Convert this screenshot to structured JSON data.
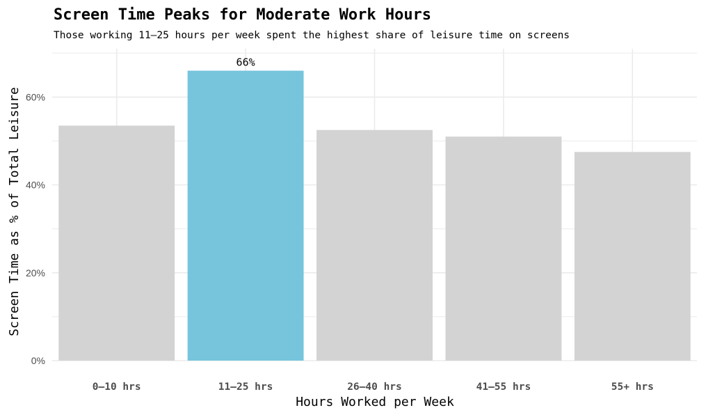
{
  "chart_data": {
    "type": "bar",
    "title": "Screen Time Peaks for Moderate Work Hours",
    "subtitle": "Those working 11–25 hours per week spent the highest share of leisure time on screens",
    "xlabel": "Hours Worked per Week",
    "ylabel": "Screen Time as % of Total Leisure",
    "categories": [
      "0–10 hrs",
      "11–25 hrs",
      "26–40 hrs",
      "41–55 hrs",
      "55+ hrs"
    ],
    "values": [
      53.5,
      66,
      52.5,
      51,
      47.5
    ],
    "ylim": [
      0,
      71
    ],
    "yticks": [
      0,
      20,
      40,
      60
    ],
    "ytick_labels": [
      "0%",
      "20%",
      "40%",
      "60%"
    ],
    "highlight_index": 1,
    "data_labels": [
      "",
      "66%",
      "",
      "",
      ""
    ],
    "grid": true,
    "colors": {
      "bar_default": "#d3d3d3",
      "bar_highlight": "#76c5dc",
      "grid": "#ebebeb",
      "text": "#000000",
      "tick_text": "#4d4d4d"
    }
  }
}
